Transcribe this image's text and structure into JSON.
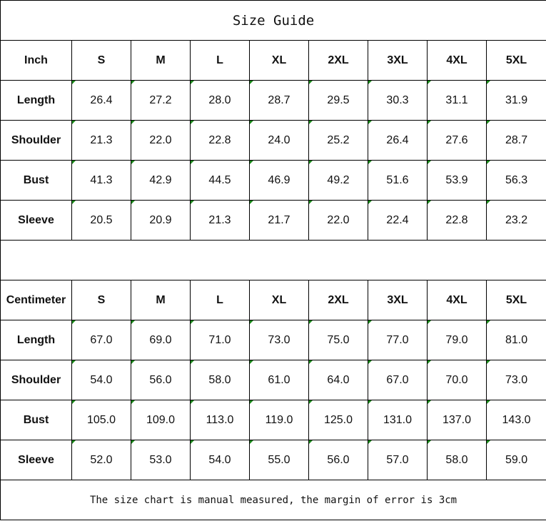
{
  "title": "Size Guide",
  "tables": [
    {
      "unit": "Inch",
      "sizes": [
        "S",
        "M",
        "L",
        "XL",
        "2XL",
        "3XL",
        "4XL",
        "5XL"
      ],
      "rows": [
        {
          "label": "Length",
          "values": [
            "26.4",
            "27.2",
            "28.0",
            "28.7",
            "29.5",
            "30.3",
            "31.1",
            "31.9"
          ]
        },
        {
          "label": "Shoulder",
          "values": [
            "21.3",
            "22.0",
            "22.8",
            "24.0",
            "25.2",
            "26.4",
            "27.6",
            "28.7"
          ]
        },
        {
          "label": "Bust",
          "values": [
            "41.3",
            "42.9",
            "44.5",
            "46.9",
            "49.2",
            "51.6",
            "53.9",
            "56.3"
          ]
        },
        {
          "label": "Sleeve",
          "values": [
            "20.5",
            "20.9",
            "21.3",
            "21.7",
            "22.0",
            "22.4",
            "22.8",
            "23.2"
          ]
        }
      ]
    },
    {
      "unit": "Centimeter",
      "sizes": [
        "S",
        "M",
        "L",
        "XL",
        "2XL",
        "3XL",
        "4XL",
        "5XL"
      ],
      "rows": [
        {
          "label": "Length",
          "values": [
            "67.0",
            "69.0",
            "71.0",
            "73.0",
            "75.0",
            "77.0",
            "79.0",
            "81.0"
          ]
        },
        {
          "label": "Shoulder",
          "values": [
            "54.0",
            "56.0",
            "58.0",
            "61.0",
            "64.0",
            "67.0",
            "70.0",
            "73.0"
          ]
        },
        {
          "label": "Bust",
          "values": [
            "105.0",
            "109.0",
            "113.0",
            "119.0",
            "125.0",
            "131.0",
            "137.0",
            "143.0"
          ]
        },
        {
          "label": "Sleeve",
          "values": [
            "52.0",
            "53.0",
            "54.0",
            "55.0",
            "56.0",
            "57.0",
            "58.0",
            "59.0"
          ]
        }
      ]
    }
  ],
  "footer": "The size chart is manual measured, the margin of error is 3cm",
  "colors": {
    "cell_marker": "#1a8a1a",
    "border": "#000000"
  }
}
